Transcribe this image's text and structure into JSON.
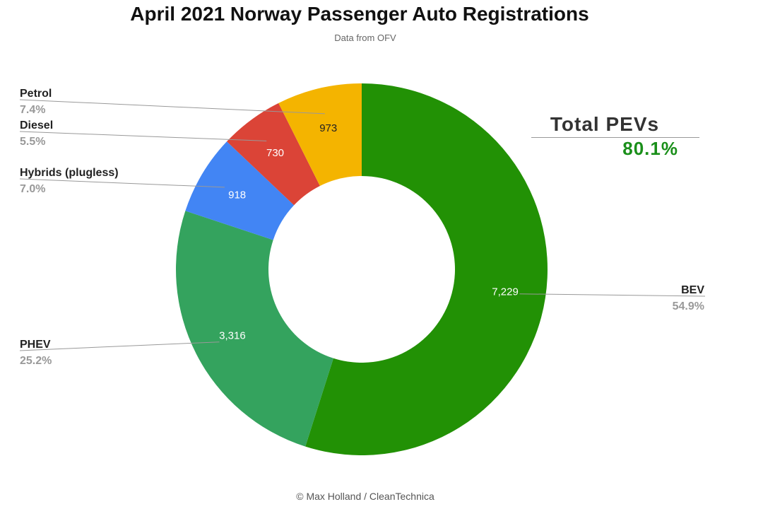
{
  "header": {
    "title": "April 2021 Norway Passenger Auto Registrations",
    "subtitle": "Data from OFV"
  },
  "callout": {
    "label": "Total PEVs",
    "value": "80.1%",
    "value_color": "#1a8f1a"
  },
  "footer": {
    "credit": "© Max Holland / CleanTechnica"
  },
  "chart_data": {
    "type": "pie",
    "donut": true,
    "title": "April 2021 Norway Passenger Auto Registrations",
    "subtitle": "Data from OFV",
    "legend": "labels beside slices",
    "slices": [
      {
        "label": "BEV",
        "value": 7229,
        "value_label": "7,229",
        "percent_label": "54.9%",
        "color": "#229105",
        "side": "right"
      },
      {
        "label": "PHEV",
        "value": 3316,
        "value_label": "3,316",
        "percent_label": "25.2%",
        "color": "#34a35e",
        "side": "left"
      },
      {
        "label": "Hybrids (plugless)",
        "value": 918,
        "value_label": "918",
        "percent_label": "7.0%",
        "color": "#4285f4",
        "side": "left"
      },
      {
        "label": "Diesel",
        "value": 730,
        "value_label": "730",
        "percent_label": "5.5%",
        "color": "#db4437",
        "side": "left"
      },
      {
        "label": "Petrol",
        "value": 973,
        "value_label": "973",
        "percent_label": "7.4%",
        "color": "#f4b400",
        "side": "left"
      }
    ]
  }
}
